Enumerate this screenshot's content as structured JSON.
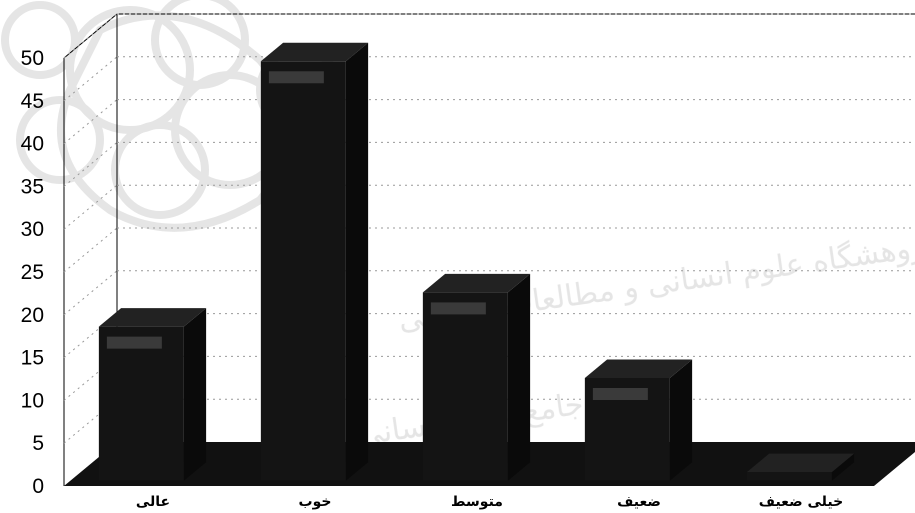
{
  "chart_data": {
    "type": "bar",
    "categories": [
      "عالی",
      "خوب",
      "متوسط",
      "ضعیف",
      "خیلی ضعیف"
    ],
    "values": [
      18,
      49,
      22,
      12,
      1
    ],
    "ylim": [
      0,
      50
    ],
    "yticks": [
      0,
      5,
      10,
      15,
      20,
      25,
      30,
      35,
      40,
      45,
      50
    ],
    "title": "",
    "xlabel": "",
    "ylabel": "",
    "grid": true,
    "legend": "none",
    "style": "3d-column",
    "colors": {
      "bar_front": "#141414",
      "bar_side": "#0a0a0a",
      "bar_top": "#222222",
      "floor": "#111111",
      "wall": "#ffffff",
      "grid": "#999999"
    }
  },
  "watermark": {
    "lines": [
      "پژوهشگاه علوم انسانی و مطالعات فرهنگی",
      "پرتال جامع علوم انسانی"
    ]
  }
}
